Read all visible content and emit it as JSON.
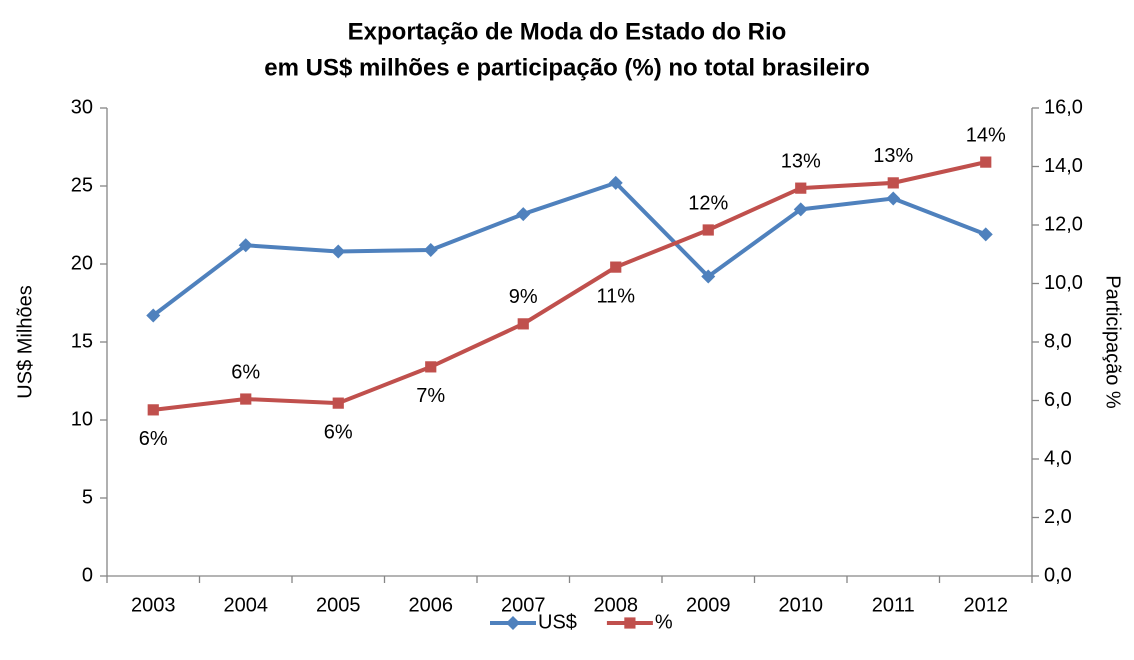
{
  "chart_data": {
    "type": "line",
    "title": "Exportação de Moda do Estado do Rio",
    "subtitle": "em US$ milhões e participação (%) no total brasileiro",
    "ylabel": "US$ Milhões",
    "y2label": "Participação %",
    "categories": [
      "2003",
      "2004",
      "2005",
      "2006",
      "2007",
      "2008",
      "2009",
      "2010",
      "2011",
      "2012"
    ],
    "series": [
      {
        "name": "US$",
        "color": "#4f81bd",
        "marker": "diamond",
        "values": [
          16.7,
          21.2,
          20.8,
          20.9,
          23.2,
          25.2,
          19.2,
          23.5,
          24.2,
          21.9
        ]
      },
      {
        "name": "%",
        "color": "#c0504d",
        "marker": "square",
        "axis": "y2",
        "values": [
          5.68,
          6.05,
          5.91,
          7.15,
          8.62,
          10.56,
          11.83,
          13.26,
          13.44,
          14.15
        ],
        "value_labels": [
          "6%",
          "6%",
          "6%",
          "7%",
          "9%",
          "11%",
          "12%",
          "13%",
          "13%",
          "14%"
        ]
      }
    ],
    "ylim": [
      0,
      30
    ],
    "yticks": [
      0,
      5,
      10,
      15,
      20,
      25,
      30
    ],
    "y2lim": [
      0,
      16
    ],
    "y2ticks": [
      {
        "value": 0,
        "label": "0,0"
      },
      {
        "value": 2,
        "label": "2,0"
      },
      {
        "value": 4,
        "label": "4,0"
      },
      {
        "value": 6,
        "label": "6,0"
      },
      {
        "value": 8,
        "label": "8,0"
      },
      {
        "value": 10,
        "label": "10,0"
      },
      {
        "value": 12,
        "label": "12,0"
      },
      {
        "value": 14,
        "label": "14,0"
      },
      {
        "value": 16,
        "label": "16,0"
      }
    ],
    "grid": false,
    "legend": "bottom"
  }
}
